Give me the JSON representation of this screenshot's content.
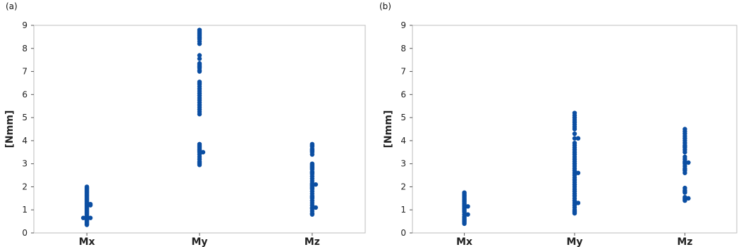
{
  "panels": [
    {
      "label": "(a)"
    },
    {
      "label": "(b)"
    }
  ],
  "colors": {
    "points": "#0b4ea2",
    "frame": "#bdbdbd",
    "axis": "#555555"
  },
  "chart_data": [
    {
      "type": "scatter",
      "panel": "(a)",
      "categories": [
        "Mx",
        "My",
        "Mz"
      ],
      "ylabel": "[Nmm]",
      "ylim": [
        0,
        9
      ],
      "yticks": [
        "0",
        "1",
        "2",
        "3",
        "4",
        "5",
        "6",
        "7",
        "8",
        "9"
      ],
      "series": [
        {
          "category": "Mx",
          "values": [
            0.35,
            0.4,
            0.45,
            0.5,
            0.55,
            0.6,
            0.65,
            0.65,
            0.65,
            0.7,
            0.75,
            0.8,
            0.85,
            0.9,
            0.95,
            1.0,
            1.05,
            1.1,
            1.15,
            1.2,
            1.2,
            1.25,
            1.25,
            1.3,
            1.35,
            1.4,
            1.45,
            1.5,
            1.55,
            1.6,
            1.65,
            1.7,
            1.75,
            1.8,
            1.85,
            1.9,
            1.95,
            2.0
          ]
        },
        {
          "category": "My",
          "values": [
            2.95,
            3.0,
            3.05,
            3.1,
            3.2,
            3.3,
            3.4,
            3.5,
            3.5,
            3.55,
            3.6,
            3.65,
            3.7,
            3.75,
            3.8,
            3.85,
            5.15,
            5.25,
            5.35,
            5.45,
            5.55,
            5.65,
            5.75,
            5.85,
            5.95,
            6.05,
            6.15,
            6.25,
            6.35,
            6.45,
            6.5,
            6.55,
            7.0,
            7.05,
            7.15,
            7.2,
            7.25,
            7.3,
            7.35,
            7.55,
            7.7,
            8.2,
            8.3,
            8.4,
            8.45,
            8.5,
            8.55,
            8.6,
            8.65,
            8.7,
            8.75,
            8.8
          ]
        },
        {
          "category": "Mz",
          "values": [
            0.8,
            0.85,
            0.95,
            1.05,
            1.1,
            1.1,
            1.2,
            1.3,
            1.4,
            1.5,
            1.55,
            1.6,
            1.7,
            1.8,
            1.9,
            1.95,
            2.0,
            2.05,
            2.1,
            2.1,
            2.15,
            2.25,
            2.35,
            2.45,
            2.55,
            2.6,
            2.65,
            2.75,
            2.8,
            2.85,
            2.9,
            2.95,
            3.0,
            3.4,
            3.5,
            3.55,
            3.6,
            3.65,
            3.75,
            3.8,
            3.85
          ]
        }
      ]
    },
    {
      "type": "scatter",
      "panel": "(b)",
      "categories": [
        "Mx",
        "My",
        "Mz"
      ],
      "ylabel": "[Nmm]",
      "ylim": [
        0,
        9
      ],
      "yticks": [
        "0",
        "1",
        "2",
        "3",
        "4",
        "5",
        "6",
        "7",
        "8",
        "9"
      ],
      "series": [
        {
          "category": "Mx",
          "values": [
            0.4,
            0.45,
            0.5,
            0.55,
            0.6,
            0.65,
            0.7,
            0.8,
            0.8,
            0.9,
            0.95,
            1.0,
            1.05,
            1.1,
            1.15,
            1.15,
            1.2,
            1.25,
            1.3,
            1.35,
            1.4,
            1.45,
            1.5,
            1.55,
            1.6,
            1.65,
            1.7,
            1.75
          ]
        },
        {
          "category": "My",
          "values": [
            0.85,
            0.9,
            0.95,
            1.0,
            1.1,
            1.2,
            1.3,
            1.3,
            1.4,
            1.5,
            1.6,
            1.7,
            1.8,
            1.9,
            2.0,
            2.1,
            2.2,
            2.3,
            2.4,
            2.5,
            2.6,
            2.6,
            2.7,
            2.8,
            2.9,
            3.0,
            3.1,
            3.2,
            3.3,
            3.4,
            3.5,
            3.6,
            3.7,
            3.8,
            3.9,
            4.1,
            4.1,
            4.3,
            4.5,
            4.6,
            4.7,
            4.8,
            4.9,
            5.0,
            5.1,
            5.2
          ]
        },
        {
          "category": "Mz",
          "values": [
            1.4,
            1.45,
            1.5,
            1.5,
            1.55,
            1.75,
            1.8,
            1.85,
            1.95,
            2.6,
            2.7,
            2.75,
            2.8,
            2.9,
            3.0,
            3.05,
            3.05,
            3.1,
            3.2,
            3.3,
            3.5,
            3.6,
            3.7,
            3.75,
            3.8,
            3.9,
            4.0,
            4.1,
            4.2,
            4.3,
            4.4,
            4.5
          ]
        }
      ]
    }
  ]
}
